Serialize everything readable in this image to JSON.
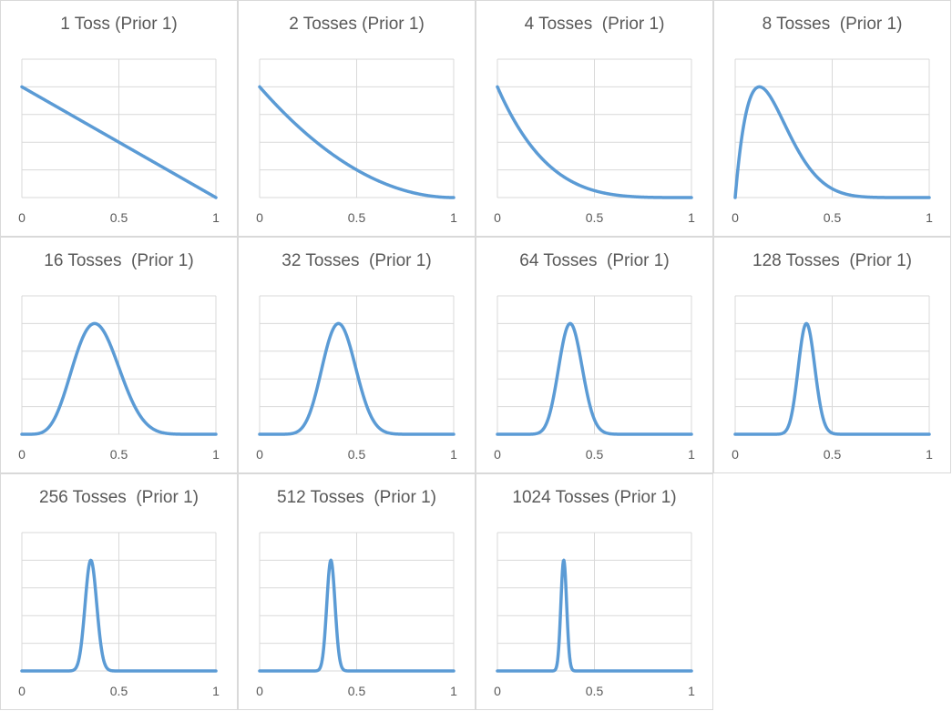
{
  "chart_data": [
    {
      "type": "line",
      "title": "1 Toss (Prior 1)",
      "tosses": 1,
      "heads": 0,
      "x_ticks": [
        "0",
        "0.5",
        "1"
      ],
      "xlim": [
        0,
        1
      ],
      "color": "#5b9bd5",
      "grid": true
    },
    {
      "type": "line",
      "title": "2 Tosses (Prior 1)",
      "tosses": 2,
      "heads": 0,
      "x_ticks": [
        "0",
        "0.5",
        "1"
      ],
      "xlim": [
        0,
        1
      ],
      "color": "#5b9bd5",
      "grid": true
    },
    {
      "type": "line",
      "title": "4 Tosses  (Prior 1)",
      "tosses": 4,
      "heads": 0,
      "x_ticks": [
        "0",
        "0.5",
        "1"
      ],
      "xlim": [
        0,
        1
      ],
      "color": "#5b9bd5",
      "grid": true
    },
    {
      "type": "line",
      "title": "8 Tosses  (Prior 1)",
      "tosses": 8,
      "heads": 1,
      "x_ticks": [
        "0",
        "0.5",
        "1"
      ],
      "xlim": [
        0,
        1
      ],
      "color": "#5b9bd5",
      "grid": true
    },
    {
      "type": "line",
      "title": "16 Tosses  (Prior 1)",
      "tosses": 16,
      "heads": 6,
      "x_ticks": [
        "0",
        "0.5",
        "1"
      ],
      "xlim": [
        0,
        1
      ],
      "color": "#5b9bd5",
      "grid": true
    },
    {
      "type": "line",
      "title": "32 Tosses  (Prior 1)",
      "tosses": 32,
      "heads": 13,
      "x_ticks": [
        "0",
        "0.5",
        "1"
      ],
      "xlim": [
        0,
        1
      ],
      "color": "#5b9bd5",
      "grid": true
    },
    {
      "type": "line",
      "title": "64 Tosses  (Prior 1)",
      "tosses": 64,
      "heads": 24,
      "x_ticks": [
        "0",
        "0.5",
        "1"
      ],
      "xlim": [
        0,
        1
      ],
      "color": "#5b9bd5",
      "grid": true
    },
    {
      "type": "line",
      "title": "128 Tosses  (Prior 1)",
      "tosses": 128,
      "heads": 47,
      "x_ticks": [
        "0",
        "0.5",
        "1"
      ],
      "xlim": [
        0,
        1
      ],
      "color": "#5b9bd5",
      "grid": true
    },
    {
      "type": "line",
      "title": "256 Tosses  (Prior 1)",
      "tosses": 256,
      "heads": 91,
      "x_ticks": [
        "0",
        "0.5",
        "1"
      ],
      "xlim": [
        0,
        1
      ],
      "color": "#5b9bd5",
      "grid": true
    },
    {
      "type": "line",
      "title": "512 Tosses  (Prior 1)",
      "tosses": 512,
      "heads": 188,
      "x_ticks": [
        "0",
        "0.5",
        "1"
      ],
      "xlim": [
        0,
        1
      ],
      "color": "#5b9bd5",
      "grid": true
    },
    {
      "type": "line",
      "title": "1024 Tosses (Prior 1)",
      "tosses": 1024,
      "heads": 350,
      "x_ticks": [
        "0",
        "0.5",
        "1"
      ],
      "xlim": [
        0,
        1
      ],
      "color": "#5b9bd5",
      "grid": true
    }
  ]
}
